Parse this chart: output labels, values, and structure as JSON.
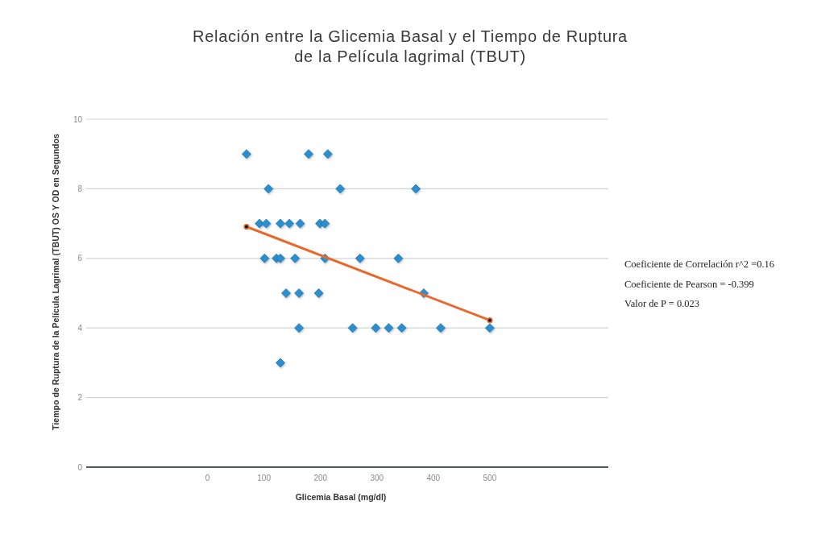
{
  "chart_data": {
    "type": "scatter",
    "title": "Relación entre la Glicemia Basal y el Tiempo de Ruptura\nde la Película lagrimal (TBUT)",
    "xlabel": "Glicemia Basal (mg/dl)",
    "ylabel": "Tiempo de Ruptura de la Película Lagrimal (TBUT) OS Y OD en Segundos",
    "xlim": [
      -215,
      710
    ],
    "xticks": [
      0,
      100,
      200,
      300,
      400,
      500
    ],
    "ylim": [
      0,
      10
    ],
    "yticks": [
      0,
      2,
      4,
      6,
      8,
      10
    ],
    "grid": "y",
    "marker": "diamond",
    "series": [
      {
        "color": "#2b8fd0",
        "x": [
          69,
          179,
          213,
          108,
          235,
          369,
          92,
          104,
          129,
          145,
          164,
          199,
          208,
          101,
          122,
          129,
          155,
          208,
          270,
          338,
          139,
          162,
          197,
          383,
          162,
          257,
          298,
          321,
          344,
          413,
          500,
          129
        ],
        "values": [
          9,
          9,
          9,
          8,
          8,
          8,
          7,
          7,
          7,
          7,
          7,
          7,
          7,
          6,
          6,
          6,
          6,
          6,
          6,
          6,
          5,
          5,
          5,
          5,
          4,
          4,
          4,
          4,
          4,
          4,
          4,
          3
        ]
      },
      {
        "type": "line",
        "color": "#e8692d",
        "marker": "circle",
        "x": [
          69,
          500
        ],
        "values": [
          6.91,
          4.22
        ]
      }
    ],
    "annotations": [
      "Coeficiente de Correlación r^2 =0.16",
      "Coeficiente de Pearson = -0.399",
      "Valor de P = 0.023"
    ]
  }
}
